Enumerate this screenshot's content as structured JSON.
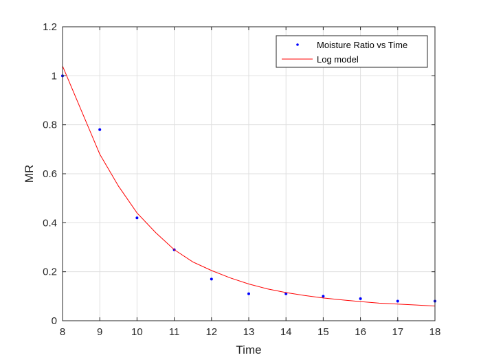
{
  "chart_data": {
    "type": "scatter",
    "xlabel": "Time",
    "ylabel": "MR",
    "xlim": [
      8,
      18
    ],
    "ylim": [
      0,
      1.2
    ],
    "xticks": [
      8,
      9,
      10,
      11,
      12,
      13,
      14,
      15,
      16,
      17,
      18
    ],
    "yticks": [
      0,
      0.2,
      0.4,
      0.6,
      0.8,
      1,
      1.2
    ],
    "grid": true,
    "legend_position": "top-right",
    "series": [
      {
        "name": "Moisture Ratio vs Time",
        "kind": "points",
        "color": "#0000ff",
        "x": [
          8,
          9,
          10,
          11,
          12,
          13,
          14,
          15,
          16,
          17,
          18
        ],
        "y": [
          1.0,
          0.78,
          0.42,
          0.29,
          0.17,
          0.11,
          0.11,
          0.1,
          0.09,
          0.08,
          0.08
        ]
      },
      {
        "name": "Log model",
        "kind": "line",
        "color": "#ff0000",
        "x": [
          8,
          8.5,
          9,
          9.5,
          10,
          10.5,
          11,
          11.5,
          12,
          12.5,
          13,
          13.5,
          14,
          14.5,
          15,
          15.5,
          16,
          16.5,
          17,
          17.5,
          18
        ],
        "y": [
          1.04,
          0.86,
          0.68,
          0.55,
          0.44,
          0.36,
          0.29,
          0.24,
          0.205,
          0.175,
          0.15,
          0.13,
          0.115,
          0.103,
          0.093,
          0.085,
          0.078,
          0.072,
          0.068,
          0.064,
          0.06
        ]
      }
    ]
  }
}
